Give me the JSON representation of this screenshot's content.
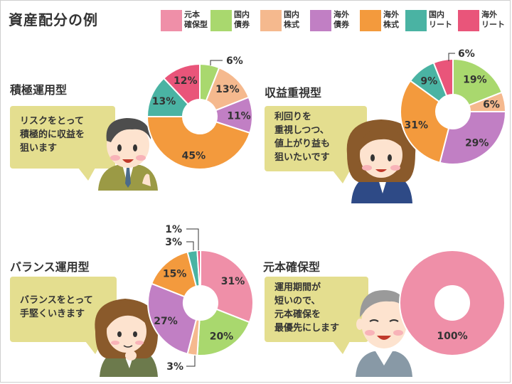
{
  "title": "資産配分の例",
  "legend": [
    {
      "label": "元本\n確保型",
      "color": "#ef8fa8"
    },
    {
      "label": "国内\n債券",
      "color": "#a9d86e"
    },
    {
      "label": "国内\n株式",
      "color": "#f5b98e"
    },
    {
      "label": "海外\n債券",
      "color": "#c17fc4"
    },
    {
      "label": "海外\n株式",
      "color": "#f39a3d"
    },
    {
      "label": "国内\nリート",
      "color": "#4ab3a3"
    },
    {
      "label": "海外\nリート",
      "color": "#e9557a"
    }
  ],
  "sections": [
    {
      "title": "積極運用型",
      "speech": "リスクをとって\n積極的に収益を\n狙います"
    },
    {
      "title": "収益重視型",
      "speech": "利回りを\n重視しつつ、\n値上がり益も\n狙いたいです"
    },
    {
      "title": "バランス運用型",
      "speech": "バランスをとって\n手堅くいきます"
    },
    {
      "title": "元本確保型",
      "speech": "運用期間が\n短いので、\n元本確保を\n最優先にします"
    }
  ],
  "chart_data": [
    {
      "type": "pie",
      "donut": true,
      "title": "積極運用型",
      "categories": [
        "国内債券",
        "国内株式",
        "海外債券",
        "海外株式",
        "国内リート",
        "海外リート"
      ],
      "values": [
        6,
        13,
        11,
        45,
        13,
        12
      ],
      "labels": [
        "6%",
        "13%",
        "11%",
        "45%",
        "13%",
        "12%"
      ],
      "colors": [
        "#a9d86e",
        "#f5b98e",
        "#c17fc4",
        "#f39a3d",
        "#4ab3a3",
        "#e9557a"
      ]
    },
    {
      "type": "pie",
      "donut": true,
      "title": "収益重視型",
      "categories": [
        "国内債券",
        "国内株式",
        "海外債券",
        "海外株式",
        "国内リート",
        "海外リート"
      ],
      "values": [
        19,
        6,
        29,
        31,
        9,
        6
      ],
      "labels": [
        "19%",
        "6%",
        "29%",
        "31%",
        "9%",
        "6%"
      ],
      "colors": [
        "#a9d86e",
        "#f5b98e",
        "#c17fc4",
        "#f39a3d",
        "#4ab3a3",
        "#e9557a"
      ]
    },
    {
      "type": "pie",
      "donut": true,
      "title": "バランス運用型",
      "categories": [
        "元本確保型",
        "国内債券",
        "国内株式",
        "海外債券",
        "海外株式",
        "国内リート",
        "海外リート"
      ],
      "values": [
        31,
        20,
        3,
        27,
        15,
        3,
        1
      ],
      "labels": [
        "31%",
        "20%",
        "3%",
        "27%",
        "15%",
        "3%",
        "1%"
      ],
      "colors": [
        "#ef8fa8",
        "#a9d86e",
        "#f5b98e",
        "#c17fc4",
        "#f39a3d",
        "#4ab3a3",
        "#e9557a"
      ]
    },
    {
      "type": "pie",
      "donut": true,
      "title": "元本確保型",
      "categories": [
        "元本確保型"
      ],
      "values": [
        100
      ],
      "labels": [
        "100%"
      ],
      "colors": [
        "#ef8fa8"
      ]
    }
  ]
}
